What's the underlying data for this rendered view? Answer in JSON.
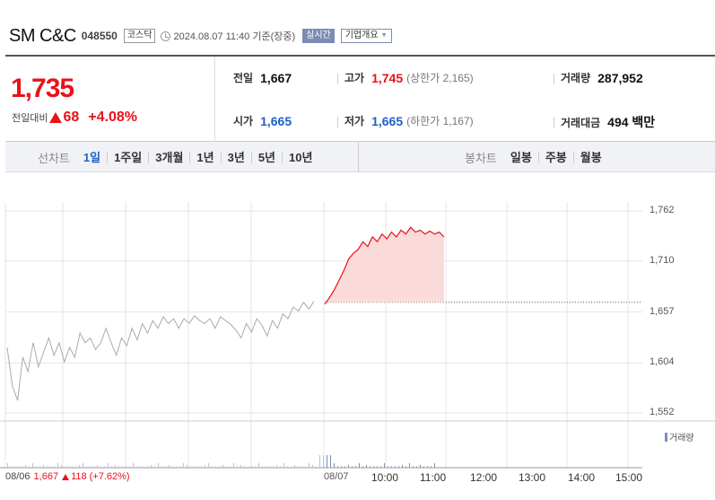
{
  "header": {
    "name": "SM C&C",
    "code": "048550",
    "market": "코스닥",
    "timestamp": "2024.08.07 11:40 기준(장중)",
    "realtime": "실시간",
    "company_info": "기업개요"
  },
  "quote": {
    "price": "1,735",
    "change_label": "전일대비",
    "change_amount": "68",
    "change_pct": "+4.08%",
    "prev_close_label": "전일",
    "prev_close": "1,667",
    "high_label": "고가",
    "high": "1,745",
    "upper_limit": "(상한가 2,165)",
    "volume_label": "거래량",
    "volume": "287,952",
    "open_label": "시가",
    "open": "1,665",
    "low_label": "저가",
    "low": "1,665",
    "lower_limit": "(하한가 1,167)",
    "value_label": "거래대금",
    "value": "494 백만"
  },
  "periods": {
    "line_label": "선차트",
    "items": [
      "1일",
      "1주일",
      "3개월",
      "1년",
      "3년",
      "5년",
      "10년"
    ],
    "active": "1일",
    "candle_label": "봉차트",
    "candle_items": [
      "일봉",
      "주봉",
      "월봉"
    ]
  },
  "chart_data": {
    "type": "line",
    "y_ticks": [
      "1,762",
      "1,710",
      "1,657",
      "1,604",
      "1,552"
    ],
    "ylim": [
      1552,
      1762
    ],
    "x_ticks": [
      "08/07",
      "10:00",
      "11:00",
      "12:00",
      "13:00",
      "14:00",
      "15:00"
    ],
    "volume_label": "거래량",
    "prev_day": {
      "date": "08/06",
      "close": "1,667",
      "change": "118",
      "pct": "(+7.62%)"
    },
    "series": [
      {
        "values": [
          1620,
          1580,
          1565,
          1610,
          1595,
          1625,
          1600,
          1615,
          1630,
          1612,
          1625,
          1605,
          1620,
          1610,
          1635,
          1625,
          1630,
          1618,
          1625,
          1640,
          1625,
          1612,
          1630,
          1622,
          1640,
          1628,
          1645,
          1635,
          1648,
          1640,
          1652,
          1645,
          1650,
          1640,
          1650,
          1645,
          1653,
          1648,
          1645,
          1650,
          1640,
          1652,
          1648,
          1644,
          1638,
          1630,
          1645,
          1636,
          1650,
          1643,
          1632,
          1648,
          1640,
          1655,
          1650,
          1662,
          1658,
          1667,
          1660,
          1668
        ]
      },
      {
        "values": [
          1665,
          1672,
          1680,
          1690,
          1700,
          1712,
          1718,
          1722,
          1730,
          1725,
          1735,
          1730,
          1738,
          1733,
          1740,
          1735,
          1742,
          1738,
          1745,
          1740,
          1742,
          1738,
          1741,
          1738,
          1740,
          1735
        ]
      }
    ]
  }
}
